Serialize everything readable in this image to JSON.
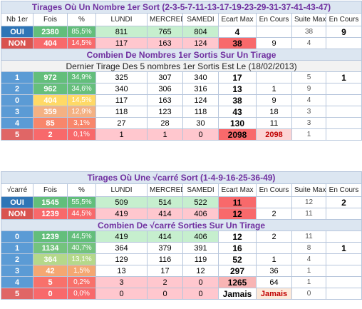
{
  "tables": [
    {
      "title": "Tirages Où Un Nombre 1er Sort (2-3-5-7-11-13-17-19-23-29-31-37-41-43-47)",
      "header": [
        "Nb 1er",
        "Fois",
        "%",
        "LUNDI",
        "MERCREDI",
        "SAMEDI",
        "Ecart Max",
        "En Cours",
        "Suite Max",
        "En Cours"
      ],
      "summary_rows": [
        [
          "OUI",
          2380,
          "85,5%",
          811,
          765,
          804,
          4,
          null,
          38,
          9
        ],
        [
          "NON",
          404,
          "14,5%",
          117,
          163,
          124,
          38,
          9,
          4,
          null
        ]
      ],
      "subtitle": "Combien De Nombres 1er Sortis  Sur Un Tirage",
      "note": "Dernier Tirage Des 5 nombres 1er Sortis Est Le (18/02/2013)",
      "count_rows": [
        [
          "1",
          972,
          "34,9%",
          325,
          307,
          340,
          17,
          null,
          5,
          1
        ],
        [
          "2",
          962,
          "34,6%",
          340,
          306,
          316,
          13,
          1,
          9,
          null
        ],
        [
          "0",
          404,
          "14,5%",
          117,
          163,
          124,
          38,
          9,
          4,
          null
        ],
        [
          "3",
          359,
          "12,9%",
          118,
          123,
          118,
          43,
          18,
          3,
          null
        ],
        [
          "4",
          85,
          "3,1%",
          27,
          28,
          30,
          130,
          11,
          3,
          null
        ],
        [
          "5",
          2,
          "0,1%",
          1,
          1,
          0,
          2098,
          2098,
          1,
          null
        ]
      ]
    },
    {
      "title": "Tirages Où Une  √carré Sort (1-4-9-16-25-36-49)",
      "header": [
        "√carré",
        "Fois",
        "%",
        "LUNDI",
        "MERCREDI",
        "SAMEDI",
        "Ecart Max",
        "En Cours",
        "Suite Max",
        "En Cours"
      ],
      "summary_rows": [
        [
          "OUI",
          1545,
          "55,5%",
          509,
          514,
          522,
          11,
          null,
          12,
          2
        ],
        [
          "NON",
          1239,
          "44,5%",
          419,
          414,
          406,
          12,
          2,
          11,
          null
        ]
      ],
      "subtitle": "Combien De √carré  Sorties Sur Un Tirage",
      "count_rows": [
        [
          "0",
          1239,
          "44,5%",
          419,
          414,
          406,
          12,
          2,
          11,
          null
        ],
        [
          "1",
          1134,
          "40,7%",
          364,
          379,
          391,
          16,
          null,
          8,
          1
        ],
        [
          "2",
          364,
          "13,1%",
          129,
          116,
          119,
          52,
          1,
          4,
          null
        ],
        [
          "3",
          42,
          "1,5%",
          13,
          17,
          12,
          297,
          36,
          1,
          null
        ],
        [
          "4",
          5,
          "0,2%",
          3,
          2,
          0,
          1265,
          64,
          1,
          null
        ],
        [
          "5",
          0,
          "0,0%",
          0,
          0,
          0,
          "Jamais",
          "Jamais",
          0,
          null
        ]
      ]
    }
  ]
}
